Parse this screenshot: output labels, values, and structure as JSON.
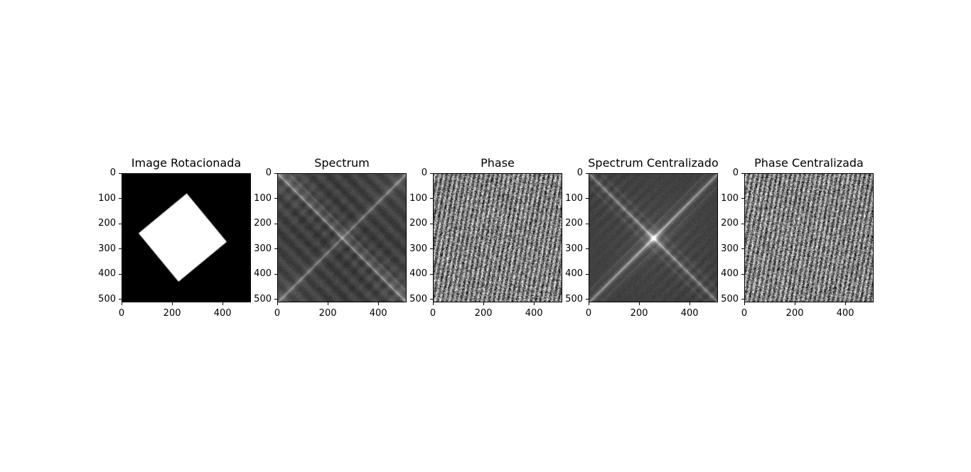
{
  "chart_data": [
    {
      "type": "heatmap",
      "title": "Image Rotacionada",
      "content": "rotated-square",
      "colormap": "gray",
      "xlim": [
        0,
        512
      ],
      "ylim": [
        512,
        0
      ],
      "xticks": [
        0,
        200,
        400
      ],
      "yticks": [
        0,
        100,
        200,
        300,
        400,
        500
      ],
      "square_corners": [
        [
          258,
          78
        ],
        [
          418,
          272
        ],
        [
          225,
          432
        ],
        [
          65,
          238
        ]
      ]
    },
    {
      "type": "heatmap",
      "title": "Spectrum",
      "content": "log-magnitude-spectrum-uncentered",
      "colormap": "gray",
      "xlim": [
        0,
        512
      ],
      "ylim": [
        512,
        0
      ],
      "xticks": [
        0,
        200,
        400
      ],
      "yticks": [
        0,
        100,
        200,
        300,
        400,
        500
      ]
    },
    {
      "type": "heatmap",
      "title": "Phase",
      "content": "phase-uncentered",
      "colormap": "gray",
      "xlim": [
        0,
        512
      ],
      "ylim": [
        512,
        0
      ],
      "xticks": [
        0,
        200,
        400
      ],
      "yticks": [
        0,
        100,
        200,
        300,
        400,
        500
      ]
    },
    {
      "type": "heatmap",
      "title": "Spectrum Centralizado",
      "content": "log-magnitude-spectrum-centered",
      "colormap": "gray",
      "xlim": [
        0,
        512
      ],
      "ylim": [
        512,
        0
      ],
      "xticks": [
        0,
        200,
        400
      ],
      "yticks": [
        0,
        100,
        200,
        300,
        400,
        500
      ]
    },
    {
      "type": "heatmap",
      "title": "Phase Centralizada",
      "content": "phase-centered",
      "colormap": "gray",
      "xlim": [
        0,
        512
      ],
      "ylim": [
        512,
        0
      ],
      "xticks": [
        0,
        200,
        400
      ],
      "yticks": [
        0,
        100,
        200,
        300,
        400,
        500
      ]
    }
  ]
}
